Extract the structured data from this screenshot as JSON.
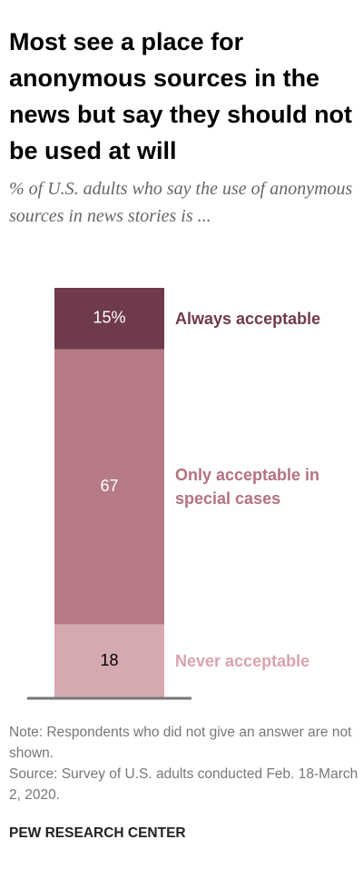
{
  "chart_data": {
    "type": "stacked-bar",
    "title": "Most see a place for anonymous sources in the news but say they should not be used at will",
    "subtitle": "% of U.S. adults who say the use of anonymous sources in news stories is ...",
    "series": [
      {
        "name": "Always acceptable",
        "color": "#6f3a4b",
        "label_color": "#6f3a4b",
        "values": [
          15
        ],
        "value_labels": [
          "15%"
        ]
      },
      {
        "name": "Only acceptable in special cases",
        "color": "#b57a85",
        "label_color": "#b4727f",
        "values": [
          67
        ]
      },
      {
        "name": "Never acceptable",
        "color": "#d6a9b0",
        "label_color": "#d9a3ad",
        "values": [
          18
        ]
      }
    ],
    "note": "Note: Respondents who did not give an answer are not shown.",
    "source": "Source: Survey of U.S. adults conducted Feb. 18-March 2, 2020.",
    "credit": "PEW RESEARCH CENTER"
  }
}
